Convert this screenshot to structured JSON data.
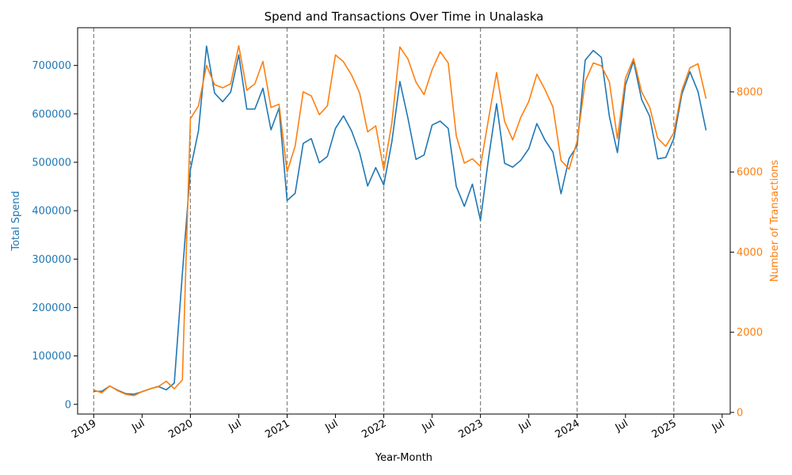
{
  "chart_data": {
    "type": "line",
    "title": "Spend and Transactions Over Time in Unalaska",
    "xlabel": "Year-Month",
    "ylabel_left": "Total Spend",
    "ylabel_right": "Number of Transactions",
    "x_tick_labels": [
      {
        "date": "2019-01",
        "label": "2019"
      },
      {
        "date": "2019-07",
        "label": "Jul"
      },
      {
        "date": "2020-01",
        "label": "2020"
      },
      {
        "date": "2020-07",
        "label": "Jul"
      },
      {
        "date": "2021-01",
        "label": "2021"
      },
      {
        "date": "2021-07",
        "label": "Jul"
      },
      {
        "date": "2022-01",
        "label": "2022"
      },
      {
        "date": "2022-07",
        "label": "Jul"
      },
      {
        "date": "2023-01",
        "label": "2023"
      },
      {
        "date": "2023-07",
        "label": "Jul"
      },
      {
        "date": "2024-01",
        "label": "2024"
      },
      {
        "date": "2024-07",
        "label": "Jul"
      },
      {
        "date": "2025-01",
        "label": "2025"
      },
      {
        "date": "2025-07",
        "label": "Jul"
      }
    ],
    "year_marker_dates": [
      "2019-01",
      "2020-01",
      "2021-01",
      "2022-01",
      "2023-01",
      "2024-01",
      "2025-01"
    ],
    "x_range": [
      "2018-11",
      "2025-08"
    ],
    "ylim_left": [
      -20000,
      778000
    ],
    "yticks_left": [
      0,
      100000,
      200000,
      300000,
      400000,
      500000,
      600000,
      700000
    ],
    "ylim_right": [
      -40,
      9600
    ],
    "yticks_right": [
      0,
      2000,
      4000,
      6000,
      8000
    ],
    "colors": {
      "spend": "#1f77b4",
      "transactions": "#ff7f0e",
      "marker": "#808080"
    },
    "months": [
      "2019-01",
      "2019-02",
      "2019-03",
      "2019-04",
      "2019-05",
      "2019-06",
      "2019-07",
      "2019-08",
      "2019-09",
      "2019-10",
      "2019-11",
      "2019-12",
      "2020-01",
      "2020-02",
      "2020-03",
      "2020-04",
      "2020-05",
      "2020-06",
      "2020-07",
      "2020-08",
      "2020-09",
      "2020-10",
      "2020-11",
      "2020-12",
      "2021-01",
      "2021-02",
      "2021-03",
      "2021-04",
      "2021-05",
      "2021-06",
      "2021-07",
      "2021-08",
      "2021-09",
      "2021-10",
      "2021-11",
      "2021-12",
      "2022-01",
      "2022-02",
      "2022-03",
      "2022-04",
      "2022-05",
      "2022-06",
      "2022-07",
      "2022-08",
      "2022-09",
      "2022-10",
      "2022-11",
      "2022-12",
      "2023-01",
      "2023-02",
      "2023-03",
      "2023-04",
      "2023-05",
      "2023-06",
      "2023-07",
      "2023-08",
      "2023-09",
      "2023-10",
      "2023-11",
      "2023-12",
      "2024-01",
      "2024-02",
      "2024-03",
      "2024-04",
      "2024-05",
      "2024-06",
      "2024-07",
      "2024-08",
      "2024-09",
      "2024-10",
      "2024-11",
      "2024-12",
      "2025-01",
      "2025-02",
      "2025-03",
      "2025-04",
      "2025-05"
    ],
    "series": [
      {
        "name": "Total Spend",
        "axis": "left",
        "values": [
          27000,
          27000,
          38000,
          29000,
          22000,
          21000,
          26000,
          32000,
          37000,
          30000,
          44000,
          270000,
          485000,
          565000,
          740000,
          643000,
          625000,
          645000,
          722000,
          610000,
          610000,
          653000,
          567000,
          612000,
          421000,
          436000,
          539000,
          549000,
          499000,
          512000,
          570000,
          596000,
          565000,
          520000,
          451000,
          489000,
          453000,
          542000,
          667000,
          591000,
          506000,
          515000,
          577000,
          585000,
          570000,
          450000,
          409000,
          455000,
          380000,
          508000,
          621000,
          498000,
          490000,
          504000,
          528000,
          580000,
          546000,
          521000,
          435000,
          508000,
          534000,
          711000,
          731000,
          717000,
          595000,
          520000,
          660000,
          709000,
          630000,
          595000,
          507000,
          510000,
          549000,
          641000,
          687000,
          646000,
          566000
        ]
      },
      {
        "name": "Number of Transactions",
        "axis": "right",
        "values": [
          560,
          490,
          660,
          540,
          450,
          420,
          520,
          590,
          640,
          780,
          590,
          810,
          7330,
          7650,
          8660,
          8180,
          8100,
          8200,
          9150,
          8040,
          8200,
          8760,
          7610,
          7690,
          6000,
          6650,
          8000,
          7900,
          7430,
          7650,
          8920,
          8750,
          8420,
          7970,
          7000,
          7150,
          6050,
          7220,
          9120,
          8820,
          8240,
          7930,
          8550,
          9000,
          8720,
          6900,
          6220,
          6330,
          6140,
          7320,
          8480,
          7260,
          6800,
          7360,
          7760,
          8440,
          8060,
          7620,
          6290,
          6070,
          6770,
          8260,
          8720,
          8650,
          8250,
          6830,
          8340,
          8830,
          8000,
          7620,
          6840,
          6640,
          6980,
          8040,
          8600,
          8700,
          7830
        ]
      }
    ]
  }
}
